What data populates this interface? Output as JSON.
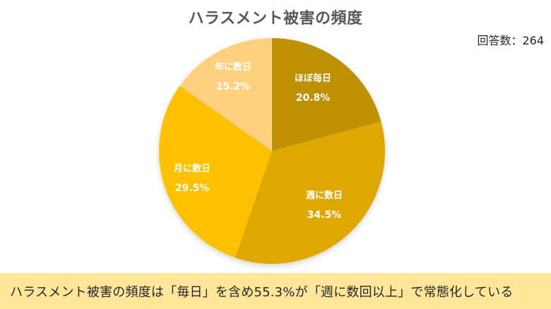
{
  "title": "ハラスメント被害の頻度",
  "respondents": "回答数：264",
  "banner": {
    "text": "ハラスメント被害の頻度は「毎日」を含め55.3%が「週に数回以上」で常態化している",
    "color": "#FFE699"
  },
  "slices": [
    {
      "label": "ほぼ毎日",
      "percent": "20.8%",
      "color": "#BF9000"
    },
    {
      "label": "週に数日",
      "percent": "34.5%",
      "color": "#DFA800"
    },
    {
      "label": "月に数日",
      "percent": "29.5%",
      "color": "#FFC000"
    },
    {
      "label": "年に数日",
      "percent": "15.2%",
      "color": "#FFD17F"
    }
  ],
  "chart_data": {
    "type": "pie",
    "title": "ハラスメント被害の頻度",
    "categories": [
      "ほぼ毎日",
      "週に数日",
      "月に数日",
      "年に数日"
    ],
    "values": [
      20.8,
      34.5,
      29.5,
      15.2
    ],
    "colors": [
      "#BF9000",
      "#DFA800",
      "#FFC000",
      "#FFD17F"
    ],
    "start_angle": "12 o'clock",
    "direction": "clockwise",
    "annotation": "回答数：264",
    "n": 264,
    "data_labels": [
      "20.8%",
      "34.5%",
      "29.5%",
      "15.2%"
    ],
    "legend": "none (labels inside slices)",
    "caption": "ハラスメント被害の頻度は「毎日」を含め55.3%が「週に数回以上」で常態化している"
  }
}
